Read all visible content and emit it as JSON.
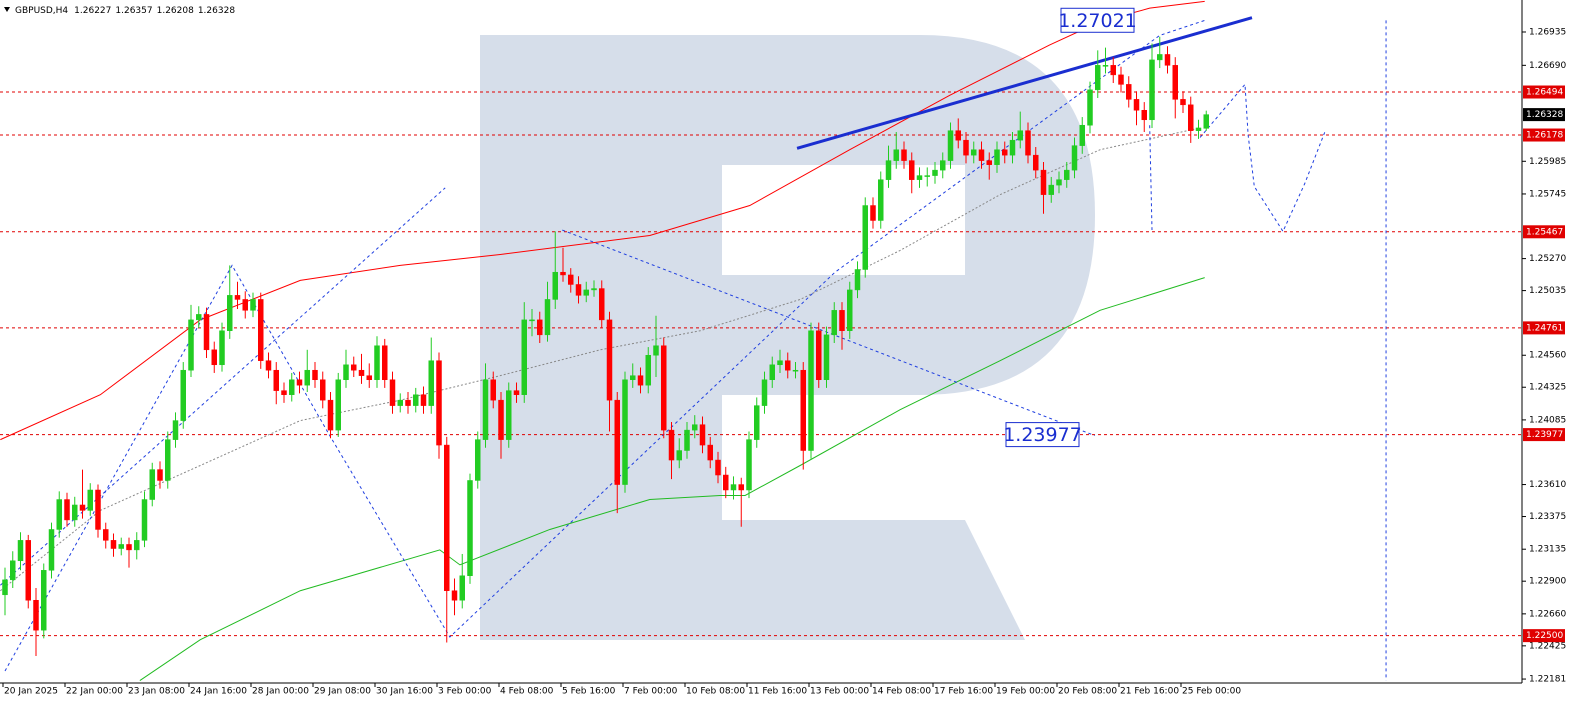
{
  "chart_data": {
    "type": "candlestick",
    "symbol": "GBPUSD,H4",
    "bull_color": "#22cc22",
    "bear_color": "#ff0000",
    "ylim": [
      1.22152,
      1.2717
    ],
    "yticks": [
      1.26935,
      {
        "value": 1.2669,
        "label": "1.26690"
      },
      1.25985,
      1.25745,
      {
        "value": 1.2527,
        "label": "1.25270"
      },
      1.25035,
      {
        "value": 1.2456,
        "label": "1.24560"
      },
      1.24325,
      1.24085,
      {
        "value": 1.2361,
        "label": "1.23610"
      },
      1.23375,
      1.23135,
      {
        "value": 1.229,
        "label": "1.22900"
      },
      {
        "value": 1.2266,
        "label": "1.22660"
      },
      1.22425,
      1.22181
    ],
    "xticks": [
      {
        "value": 0,
        "label": "20 Jan 2025"
      },
      {
        "value": 8,
        "label": "22 Jan 00:00"
      },
      {
        "value": 16,
        "label": "23 Jan 08:00"
      },
      {
        "value": 24,
        "label": "24 Jan 16:00"
      },
      {
        "value": 32,
        "label": "28 Jan 00:00"
      },
      {
        "value": 40,
        "label": "29 Jan 08:00"
      },
      {
        "value": 48,
        "label": "30 Jan 16:00"
      },
      {
        "value": 56,
        "label": "3 Feb 00:00"
      },
      {
        "value": 64,
        "label": "4 Feb 08:00"
      },
      {
        "value": 72,
        "label": "5 Feb 16:00"
      },
      {
        "value": 80,
        "label": "7 Feb 00:00"
      },
      {
        "value": 88,
        "label": "10 Feb 08:00"
      },
      {
        "value": 96,
        "label": "11 Feb 16:00"
      },
      {
        "value": 104,
        "label": "13 Feb 00:00"
      },
      {
        "value": 112,
        "label": "14 Feb 08:00"
      },
      {
        "value": 120,
        "label": "17 Feb 16:00"
      },
      {
        "value": 128,
        "label": "19 Feb 00:00"
      },
      {
        "value": 136,
        "label": "20 Feb 08:00"
      },
      {
        "value": 144,
        "label": "21 Feb 16:00"
      },
      {
        "value": 152,
        "label": "25 Feb 00:00"
      }
    ],
    "levels": [
      1.26494,
      1.26178,
      1.25467,
      1.24761,
      1.23977,
      {
        "value": 1.225,
        "label": "1.22500"
      }
    ],
    "level_color": "#e00000",
    "annotations": [
      1.27021,
      1.23977
    ],
    "candles": [
      [
        1.228,
        1.23,
        1.2265,
        1.2291
      ],
      [
        1.2291,
        1.2312,
        1.2285,
        1.2305
      ],
      [
        1.2305,
        1.2326,
        1.2298,
        1.232
      ],
      [
        1.232,
        1.2324,
        1.227,
        1.2276
      ],
      [
        1.2276,
        1.2285,
        1.2235,
        1.2254
      ],
      [
        1.2254,
        1.2303,
        1.2248,
        1.2298
      ],
      [
        1.2298,
        1.2333,
        1.2292,
        1.2328
      ],
      [
        1.2328,
        1.2356,
        1.2322,
        1.235
      ],
      [
        1.235,
        1.2355,
        1.233,
        1.2335
      ],
      [
        1.2335,
        1.2352,
        1.233,
        1.2346
      ],
      [
        1.2346,
        1.2372,
        1.2336,
        1.2342
      ],
      [
        1.2342,
        1.2362,
        1.2338,
        1.2357
      ],
      [
        1.2357,
        1.2361,
        1.2322,
        1.2328
      ],
      [
        1.2328,
        1.2333,
        1.2314,
        1.232
      ],
      [
        1.232,
        1.2325,
        1.2308,
        1.2314
      ],
      [
        1.2314,
        1.2322,
        1.2309,
        1.2317
      ],
      [
        1.2317,
        1.2322,
        1.23,
        1.2313
      ],
      [
        1.2313,
        1.2326,
        1.2306,
        1.232
      ],
      [
        1.232,
        1.2356,
        1.2315,
        1.235
      ],
      [
        1.235,
        1.2377,
        1.2345,
        1.2372
      ],
      [
        1.2372,
        1.2378,
        1.2358,
        1.2364
      ],
      [
        1.2364,
        1.24,
        1.2358,
        1.2394
      ],
      [
        1.2394,
        1.2414,
        1.2388,
        1.2408
      ],
      [
        1.2408,
        1.2451,
        1.2402,
        1.2445
      ],
      [
        1.2445,
        1.2493,
        1.244,
        1.2482
      ],
      [
        1.2482,
        1.2492,
        1.2476,
        1.2486
      ],
      [
        1.2486,
        1.2491,
        1.2454,
        1.246
      ],
      [
        1.246,
        1.2466,
        1.2443,
        1.2449
      ],
      [
        1.2449,
        1.248,
        1.2444,
        1.2474
      ],
      [
        1.2474,
        1.2522,
        1.2468,
        1.25
      ],
      [
        1.25,
        1.251,
        1.249,
        1.2497
      ],
      [
        1.2497,
        1.2503,
        1.2483,
        1.2489
      ],
      [
        1.2489,
        1.2502,
        1.2484,
        1.2497
      ],
      [
        1.2497,
        1.2502,
        1.2446,
        1.2452
      ],
      [
        1.2452,
        1.2458,
        1.2439,
        1.2445
      ],
      [
        1.2445,
        1.2451,
        1.242,
        1.243
      ],
      [
        1.243,
        1.2436,
        1.2421,
        1.2427
      ],
      [
        1.2427,
        1.2443,
        1.2422,
        1.2438
      ],
      [
        1.2438,
        1.2444,
        1.2428,
        1.2434
      ],
      [
        1.2434,
        1.246,
        1.2429,
        1.2445
      ],
      [
        1.2445,
        1.2451,
        1.2432,
        1.2438
      ],
      [
        1.2438,
        1.2444,
        1.2417,
        1.2423
      ],
      [
        1.2423,
        1.2429,
        1.2395,
        1.2401
      ],
      [
        1.2401,
        1.2443,
        1.2396,
        1.2438
      ],
      [
        1.2438,
        1.246,
        1.2432,
        1.2449
      ],
      [
        1.2449,
        1.2455,
        1.244,
        1.2445
      ],
      [
        1.2445,
        1.2457,
        1.2435,
        1.2441
      ],
      [
        1.2441,
        1.245,
        1.2432,
        1.2438
      ],
      [
        1.2438,
        1.247,
        1.2432,
        1.2463
      ],
      [
        1.2463,
        1.2468,
        1.2432,
        1.2438
      ],
      [
        1.2438,
        1.2444,
        1.2413,
        1.2419
      ],
      [
        1.2419,
        1.2428,
        1.2414,
        1.2423
      ],
      [
        1.2423,
        1.2429,
        1.2413,
        1.2419
      ],
      [
        1.2419,
        1.2432,
        1.2414,
        1.2427
      ],
      [
        1.2427,
        1.2433,
        1.2413,
        1.2419
      ],
      [
        1.2419,
        1.2469,
        1.2413,
        1.2452
      ],
      [
        1.2452,
        1.2458,
        1.238,
        1.239
      ],
      [
        1.239,
        1.2396,
        1.2245,
        1.2283
      ],
      [
        1.2283,
        1.2292,
        1.2265,
        1.2276
      ],
      [
        1.2276,
        1.231,
        1.227,
        1.2294
      ],
      [
        1.2294,
        1.2369,
        1.2288,
        1.2364
      ],
      [
        1.2364,
        1.24,
        1.2358,
        1.2394
      ],
      [
        1.2394,
        1.245,
        1.2388,
        1.2438
      ],
      [
        1.2438,
        1.2444,
        1.2417,
        1.2423
      ],
      [
        1.2423,
        1.2429,
        1.238,
        1.2394
      ],
      [
        1.2394,
        1.2436,
        1.2388,
        1.243
      ],
      [
        1.243,
        1.2436,
        1.2421,
        1.2427
      ],
      [
        1.2427,
        1.2495,
        1.2421,
        1.2482
      ],
      [
        1.2482,
        1.249,
        1.247,
        1.2482
      ],
      [
        1.2482,
        1.2488,
        1.2465,
        1.2471
      ],
      [
        1.2471,
        1.251,
        1.2466,
        1.2497
      ],
      [
        1.2497,
        1.2547,
        1.249,
        1.2517
      ],
      [
        1.2517,
        1.2535,
        1.251,
        1.2515
      ],
      [
        1.2515,
        1.252,
        1.2502,
        1.2508
      ],
      [
        1.2508,
        1.2514,
        1.2494,
        1.25
      ],
      [
        1.25,
        1.251,
        1.2495,
        1.2504
      ],
      [
        1.2504,
        1.2511,
        1.2499,
        1.2505
      ],
      [
        1.2505,
        1.2511,
        1.2476,
        1.2482
      ],
      [
        1.2482,
        1.2488,
        1.24,
        1.2423
      ],
      [
        1.2423,
        1.2429,
        1.234,
        1.2361
      ],
      [
        1.2361,
        1.2444,
        1.2355,
        1.2438
      ],
      [
        1.2438,
        1.245,
        1.2432,
        1.2441
      ],
      [
        1.2441,
        1.2447,
        1.2428,
        1.2434
      ],
      [
        1.2434,
        1.2462,
        1.2428,
        1.2456
      ],
      [
        1.2456,
        1.2485,
        1.244,
        1.2463
      ],
      [
        1.2463,
        1.2469,
        1.2395,
        1.2401
      ],
      [
        1.2401,
        1.2407,
        1.2365,
        1.2379
      ],
      [
        1.2379,
        1.2395,
        1.2373,
        1.2386
      ],
      [
        1.2386,
        1.2407,
        1.238,
        1.2401
      ],
      [
        1.2401,
        1.2412,
        1.2395,
        1.2405
      ],
      [
        1.2405,
        1.2411,
        1.2384,
        1.239
      ],
      [
        1.239,
        1.2396,
        1.2373,
        1.2379
      ],
      [
        1.2379,
        1.2385,
        1.2362,
        1.2368
      ],
      [
        1.2368,
        1.2374,
        1.2351,
        1.2357
      ],
      [
        1.2357,
        1.2367,
        1.235,
        1.2361
      ],
      [
        1.2361,
        1.2366,
        1.233,
        1.2357
      ],
      [
        1.2357,
        1.24,
        1.2351,
        1.2394
      ],
      [
        1.2394,
        1.2425,
        1.2388,
        1.2419
      ],
      [
        1.2419,
        1.2444,
        1.2413,
        1.2438
      ],
      [
        1.2438,
        1.2455,
        1.2432,
        1.2449
      ],
      [
        1.2449,
        1.246,
        1.2443,
        1.2452
      ],
      [
        1.2452,
        1.2458,
        1.2439,
        1.2445
      ],
      [
        1.2445,
        1.2451,
        1.2439,
        1.2445
      ],
      [
        1.2445,
        1.2451,
        1.2372,
        1.2386
      ],
      [
        1.2386,
        1.248,
        1.238,
        1.2474
      ],
      [
        1.2474,
        1.248,
        1.2432,
        1.2438
      ],
      [
        1.2438,
        1.2477,
        1.2432,
        1.2471
      ],
      [
        1.2471,
        1.2495,
        1.2465,
        1.2489
      ],
      [
        1.2489,
        1.2495,
        1.246,
        1.2474
      ],
      [
        1.2474,
        1.251,
        1.2468,
        1.2504
      ],
      [
        1.2504,
        1.2525,
        1.2498,
        1.2519
      ],
      [
        1.2519,
        1.2572,
        1.2513,
        1.2566
      ],
      [
        1.2566,
        1.2572,
        1.2549,
        1.2555
      ],
      [
        1.2555,
        1.2591,
        1.2549,
        1.2585
      ],
      [
        1.2585,
        1.261,
        1.2579,
        1.2599
      ],
      [
        1.2599,
        1.262,
        1.2593,
        1.2607
      ],
      [
        1.2607,
        1.2613,
        1.2593,
        1.2599
      ],
      [
        1.2599,
        1.2605,
        1.2575,
        1.2585
      ],
      [
        1.2585,
        1.2594,
        1.2579,
        1.2588
      ],
      [
        1.2588,
        1.2594,
        1.258,
        1.2588
      ],
      [
        1.2588,
        1.2598,
        1.2582,
        1.2592
      ],
      [
        1.2592,
        1.2605,
        1.2586,
        1.2599
      ],
      [
        1.2599,
        1.2627,
        1.2593,
        1.2621
      ],
      [
        1.2621,
        1.263,
        1.2608,
        1.2614
      ],
      [
        1.2614,
        1.262,
        1.2597,
        1.2603
      ],
      [
        1.2603,
        1.2613,
        1.2597,
        1.2607
      ],
      [
        1.2607,
        1.2613,
        1.2593,
        1.2599
      ],
      [
        1.2599,
        1.2605,
        1.2585,
        1.2596
      ],
      [
        1.2596,
        1.2613,
        1.259,
        1.2607
      ],
      [
        1.2607,
        1.2613,
        1.2597,
        1.2603
      ],
      [
        1.2603,
        1.262,
        1.2597,
        1.2614
      ],
      [
        1.2614,
        1.2635,
        1.2608,
        1.2621
      ],
      [
        1.2621,
        1.2627,
        1.2597,
        1.2603
      ],
      [
        1.2603,
        1.2609,
        1.2586,
        1.2592
      ],
      [
        1.2592,
        1.2598,
        1.256,
        1.2574
      ],
      [
        1.2574,
        1.2587,
        1.2568,
        1.2581
      ],
      [
        1.2581,
        1.2591,
        1.2575,
        1.2585
      ],
      [
        1.2585,
        1.2598,
        1.2579,
        1.2592
      ],
      [
        1.2592,
        1.2616,
        1.2586,
        1.261
      ],
      [
        1.261,
        1.2631,
        1.2604,
        1.2625
      ],
      [
        1.2625,
        1.2657,
        1.2619,
        1.2651
      ],
      [
        1.2651,
        1.268,
        1.2645,
        1.2669
      ],
      [
        1.2669,
        1.2682,
        1.2663,
        1.2669
      ],
      [
        1.2669,
        1.2675,
        1.2656,
        1.2662
      ],
      [
        1.2662,
        1.2668,
        1.2649,
        1.2655
      ],
      [
        1.2655,
        1.2661,
        1.2638,
        1.2644
      ],
      [
        1.2644,
        1.265,
        1.2625,
        1.2636
      ],
      [
        1.2636,
        1.2642,
        1.262,
        1.2629
      ],
      [
        1.2629,
        1.2685,
        1.2623,
        1.2673
      ],
      [
        1.2673,
        1.269,
        1.2667,
        1.2677
      ],
      [
        1.2677,
        1.2683,
        1.2663,
        1.2669
      ],
      [
        1.2669,
        1.2675,
        1.263,
        1.2644
      ],
      [
        1.2644,
        1.265,
        1.2634,
        1.264
      ],
      [
        1.264,
        1.2646,
        1.2612,
        1.2621
      ],
      [
        1.2621,
        1.2629,
        1.2615,
        1.2623
      ],
      [
        1.26227,
        1.26357,
        1.26208,
        1.26328
      ]
    ],
    "overlays": [
      {
        "color": "#ff0000",
        "width": 1,
        "dash": "none",
        "x": [
          -0.6,
          12.3,
          25.2,
          38.1,
          51.0,
          63.9,
          83.2,
          96.1,
          109.0,
          121.9,
          134.8,
          141.3,
          147.7,
          154.8
        ],
        "y": [
          1.2394,
          1.2427,
          1.2482,
          1.2511,
          1.2522,
          1.253,
          1.2544,
          1.2566,
          1.2607,
          1.2647,
          1.2684,
          1.2701,
          1.2711,
          1.2716
        ]
      },
      {
        "color": "#22bb22",
        "width": 1,
        "dash": "none",
        "x": [
          17.4,
          25.2,
          38.1,
          56.1,
          58.7,
          70.3,
          83.2,
          92.3,
          95.5,
          102.6,
          115.5,
          128.4,
          141.3,
          154.8
        ],
        "y": [
          1.2217,
          1.2247,
          1.2283,
          1.2313,
          1.2302,
          1.2328,
          1.235,
          1.2353,
          1.2353,
          1.2375,
          1.2416,
          1.2452,
          1.2489,
          1.2513
        ]
      },
      {
        "color": "#888888",
        "width": 1,
        "dash": "2,2",
        "x": [
          -0.6,
          12.3,
          25.2,
          38.1,
          51.0,
          63.9,
          76.8,
          89.7,
          102.6,
          115.5,
          128.4,
          141.3,
          154.2
        ],
        "y": [
          1.2283,
          1.2342,
          1.2375,
          1.2408,
          1.2423,
          1.2441,
          1.246,
          1.2474,
          1.2497,
          1.2533,
          1.2574,
          1.2607,
          1.2623
        ]
      },
      {
        "color": "#1f3fe0",
        "width": 1,
        "dash": "3,3",
        "x": [
          0,
          29.3,
          41.9,
          57.4,
          107.1,
          149,
          154.8
        ],
        "y": [
          1.2224,
          1.2522,
          1.2397,
          1.2249,
          1.2517,
          1.2691,
          1.2702
        ]
      },
      {
        "color": "#1f3fe0",
        "width": 1,
        "dash": "3,3",
        "x": [
          -0.6,
          56.8
        ],
        "y": [
          1.2287,
          1.2579
        ]
      },
      {
        "color": "#1f3fe0",
        "width": 1,
        "dash": "3,3",
        "x": [
          71.9,
          140.6
        ],
        "y": [
          1.2548,
          1.2397
        ]
      },
      {
        "color": "#1f3fe0",
        "width": 1,
        "dash": "3,3",
        "x": [
          147.7,
          148
        ],
        "y": [
          1.2625,
          1.2548
        ]
      },
      {
        "color": "#1f3fe0",
        "width": 1,
        "dash": "3,3",
        "x": [
          154.2,
          160,
          160.4,
          161.2,
          164.9,
          167.7,
          170.3
        ],
        "y": [
          1.2616,
          1.2655,
          1.2618,
          1.258,
          1.2547,
          1.2582,
          1.262
        ]
      },
      {
        "color": "#1f3fe0",
        "width": 1,
        "dash": "3,3",
        "x": [
          178.2,
          178.2
        ],
        "y": [
          1.2702,
          1.2217
        ]
      },
      {
        "color": "#1a2ed0",
        "width": 3,
        "dash": "none",
        "x": [
          102.2,
          160.9
        ],
        "y": [
          1.2608,
          1.2704
        ]
      }
    ]
  }
}
